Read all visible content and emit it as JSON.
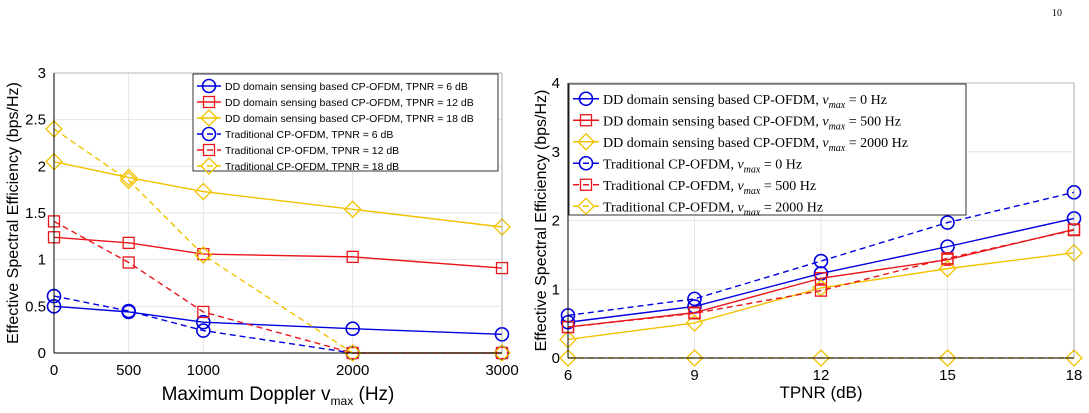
{
  "page_number": "10",
  "colors": {
    "blue": "#0000e0",
    "red": "#e8161b",
    "yellow": "#f2c200",
    "grid": "#e6e6e6"
  },
  "chart_data": [
    {
      "type": "line",
      "xlabel": "Maximum Doppler v",
      "xlabel_sub": "max",
      "xlabel_unit": " (Hz)",
      "ylabel": "Effective Spectral Efficiency (bps/Hz)",
      "x": [
        0,
        500,
        1000,
        2000,
        3000
      ],
      "x_ticks": [
        "0",
        "500",
        "1000",
        "2000",
        "3000"
      ],
      "y_ticks": [
        "0",
        "0.5",
        "1",
        "1.5",
        "2",
        "2.5",
        "3"
      ],
      "xlim": [
        0,
        3000
      ],
      "ylim": [
        0,
        3
      ],
      "grid": true,
      "legend_position": "top-right",
      "series": [
        {
          "name": "DD domain sensing based CP-OFDM, TPNR = 6 dB",
          "color": "blue",
          "marker": "circle",
          "dashed": false,
          "x": [
            0,
            500,
            1000,
            2000,
            3000
          ],
          "values": [
            0.5,
            0.44,
            0.33,
            0.26,
            0.2
          ]
        },
        {
          "name": "DD domain sensing based CP-OFDM, TPNR = 12 dB",
          "color": "red",
          "marker": "square",
          "dashed": false,
          "x": [
            0,
            500,
            1000,
            2000,
            3000
          ],
          "values": [
            1.24,
            1.18,
            1.06,
            1.03,
            0.91
          ]
        },
        {
          "name": "DD domain sensing based CP-OFDM, TPNR = 18 dB",
          "color": "yellow",
          "marker": "diamond",
          "dashed": false,
          "x": [
            0,
            500,
            1000,
            2000,
            3000
          ],
          "values": [
            2.05,
            1.88,
            1.73,
            1.54,
            1.35
          ]
        },
        {
          "name": "Traditional CP-OFDM, TPNR = 6 dB",
          "color": "blue",
          "marker": "circle",
          "dashed": true,
          "x": [
            0,
            500,
            1000,
            2000,
            3000
          ],
          "values": [
            0.61,
            0.45,
            0.24,
            0.0,
            0.0
          ]
        },
        {
          "name": "Traditional CP-OFDM, TPNR = 12 dB",
          "color": "red",
          "marker": "square",
          "dashed": true,
          "x": [
            0,
            500,
            1000,
            2000,
            3000
          ],
          "values": [
            1.41,
            0.97,
            0.44,
            0.0,
            0.0
          ]
        },
        {
          "name": "Traditional CP-OFDM, TPNR = 18 dB",
          "color": "yellow",
          "marker": "diamond",
          "dashed": true,
          "x": [
            0,
            500,
            1000,
            2000,
            3000
          ],
          "values": [
            2.4,
            1.85,
            1.05,
            0.0,
            0.0
          ]
        }
      ]
    },
    {
      "type": "line",
      "xlabel": "TPNR  (dB)",
      "ylabel": "Effective Spectral Efficiency (bps/Hz)",
      "x": [
        6,
        9,
        12,
        15,
        18
      ],
      "x_ticks": [
        "6",
        "9",
        "12",
        "15",
        "18"
      ],
      "y_ticks": [
        "0",
        "1",
        "2",
        "3",
        "4"
      ],
      "xlim": [
        6,
        18
      ],
      "ylim": [
        0,
        4
      ],
      "grid": true,
      "legend_position": "top-left",
      "series": [
        {
          "name_prefix": "DD domain sensing based CP-OFDM, ",
          "name_var": "ν",
          "name_sub": "max",
          "name_suffix": " = 0 Hz",
          "color": "blue",
          "marker": "circle",
          "dashed": false,
          "x": [
            6,
            9,
            12,
            15,
            18
          ],
          "values": [
            0.52,
            0.75,
            1.23,
            1.62,
            2.03
          ]
        },
        {
          "name_prefix": "DD domain sensing based CP-OFDM, ",
          "name_var": "ν",
          "name_sub": "max",
          "name_suffix": " = 500 Hz",
          "color": "red",
          "marker": "square",
          "dashed": false,
          "x": [
            6,
            9,
            12,
            15,
            18
          ],
          "values": [
            0.45,
            0.66,
            1.16,
            1.43,
            1.87
          ]
        },
        {
          "name_prefix": "DD domain sensing based CP-OFDM, ",
          "name_var": "ν",
          "name_sub": "max",
          "name_suffix": " = 2000 Hz",
          "color": "yellow",
          "marker": "diamond",
          "dashed": false,
          "x": [
            6,
            9,
            12,
            15,
            18
          ],
          "values": [
            0.27,
            0.51,
            1.02,
            1.3,
            1.53
          ]
        },
        {
          "name_prefix": "Traditional CP-OFDM, ",
          "name_var": "ν",
          "name_sub": "max",
          "name_suffix": " = 0 Hz",
          "color": "blue",
          "marker": "circle",
          "dashed": true,
          "x": [
            6,
            9,
            12,
            15,
            18
          ],
          "values": [
            0.62,
            0.86,
            1.41,
            1.97,
            2.41
          ]
        },
        {
          "name_prefix": "Traditional CP-OFDM, ",
          "name_var": "ν",
          "name_sub": "max",
          "name_suffix": " = 500 Hz",
          "color": "red",
          "marker": "square",
          "dashed": true,
          "x": [
            6,
            9,
            12,
            15,
            18
          ],
          "values": [
            0.45,
            0.65,
            0.98,
            1.45,
            1.86
          ]
        },
        {
          "name_prefix": "Traditional CP-OFDM, ",
          "name_var": "ν",
          "name_sub": "max",
          "name_suffix": " = 2000 Hz",
          "color": "yellow",
          "marker": "diamond",
          "dashed": true,
          "x": [
            6,
            9,
            12,
            15,
            18
          ],
          "values": [
            0.0,
            0.0,
            0.0,
            0.0,
            0.0
          ]
        }
      ]
    }
  ]
}
